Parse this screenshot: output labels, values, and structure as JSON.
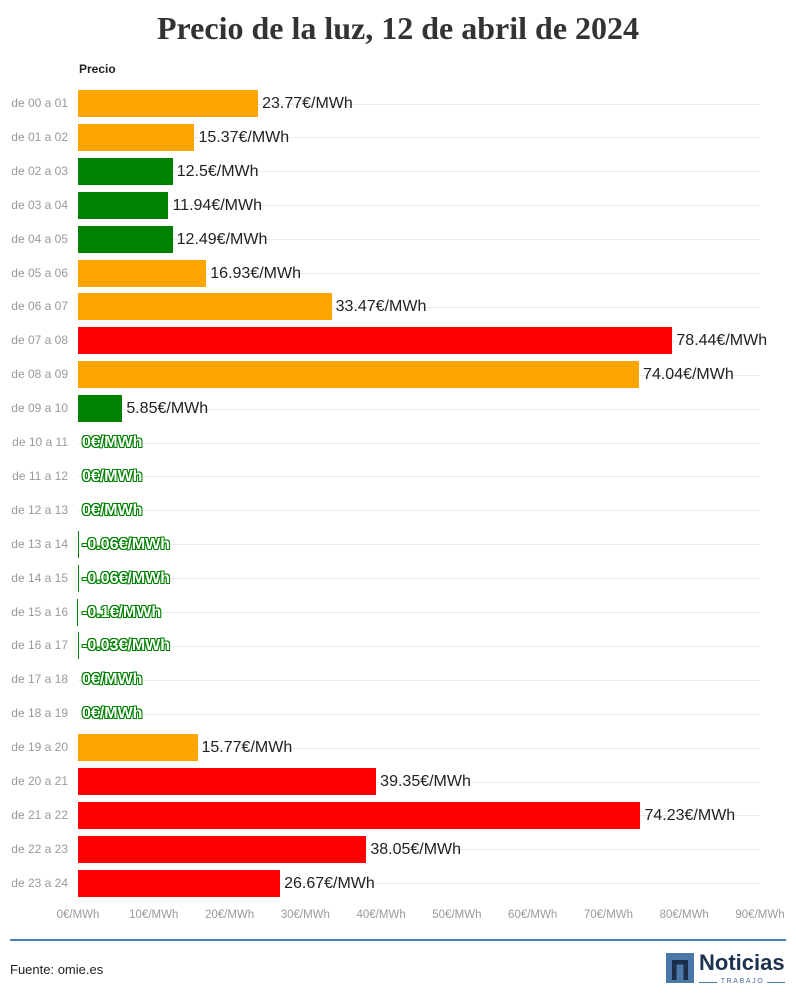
{
  "chart_data": {
    "type": "bar",
    "horizontal": true,
    "title": "Precio de la luz, 12 de abril de 2024",
    "column_header": "Precio",
    "categories": [
      "de 00 a 01",
      "de 01 a 02",
      "de 02 a 03",
      "de 03 a 04",
      "de 04 a 05",
      "de 05 a 06",
      "de 06 a 07",
      "de 07 a 08",
      "de 08 a 09",
      "de 09 a 10",
      "de 10 a 11",
      "de 11 a 12",
      "de 12 a 13",
      "de 13 a 14",
      "de 14 a 15",
      "de 15 a 16",
      "de 16 a 17",
      "de 17 a 18",
      "de 18 a 19",
      "de 19 a 20",
      "de 20 a 21",
      "de 21 a 22",
      "de 22 a 23",
      "de 23 a 24"
    ],
    "values": [
      23.77,
      15.37,
      12.5,
      11.94,
      12.49,
      16.93,
      33.47,
      78.44,
      74.04,
      5.85,
      0,
      0,
      0,
      -0.06,
      -0.06,
      -0.1,
      -0.03,
      0,
      0,
      15.77,
      39.35,
      74.23,
      38.05,
      26.67
    ],
    "value_labels": [
      "23.77€/MWh",
      "15.37€/MWh",
      "12.5€/MWh",
      "11.94€/MWh",
      "12.49€/MWh",
      "16.93€/MWh",
      "33.47€/MWh",
      "78.44€/MWh",
      "74.04€/MWh",
      "5.85€/MWh",
      "0€/MWh",
      "0€/MWh",
      "0€/MWh",
      "-0.06€/MWh",
      "-0.06€/MWh",
      "-0.1€/MWh",
      "-0.03€/MWh",
      "0€/MWh",
      "0€/MWh",
      "15.77€/MWh",
      "39.35€/MWh",
      "74.23€/MWh",
      "38.05€/MWh",
      "26.67€/MWh"
    ],
    "bar_colors": [
      "#FFA500",
      "#FFA500",
      "#008000",
      "#008000",
      "#008000",
      "#FFA500",
      "#FFA500",
      "#FF0000",
      "#FFA500",
      "#008000",
      "#008000",
      "#008000",
      "#008000",
      "#008000",
      "#008000",
      "#008000",
      "#008000",
      "#008000",
      "#008000",
      "#FFA500",
      "#FF0000",
      "#FF0000",
      "#FF0000",
      "#FF0000"
    ],
    "xlim": [
      0,
      90
    ],
    "xticks": [
      0,
      10,
      20,
      30,
      40,
      50,
      60,
      70,
      80,
      90
    ],
    "xtick_labels": [
      "0€/MWh",
      "10€/MWh",
      "20€/MWh",
      "30€/MWh",
      "40€/MWh",
      "50€/MWh",
      "60€/MWh",
      "70€/MWh",
      "80€/MWh",
      "90€/MWh"
    ],
    "grid": true
  },
  "footer": {
    "source": "Fuente: omie.es",
    "accent_color": "#4b80b9",
    "logo": {
      "icon": "n-logo-icon",
      "name": "Noticias",
      "sub": "TRABAJO"
    }
  }
}
